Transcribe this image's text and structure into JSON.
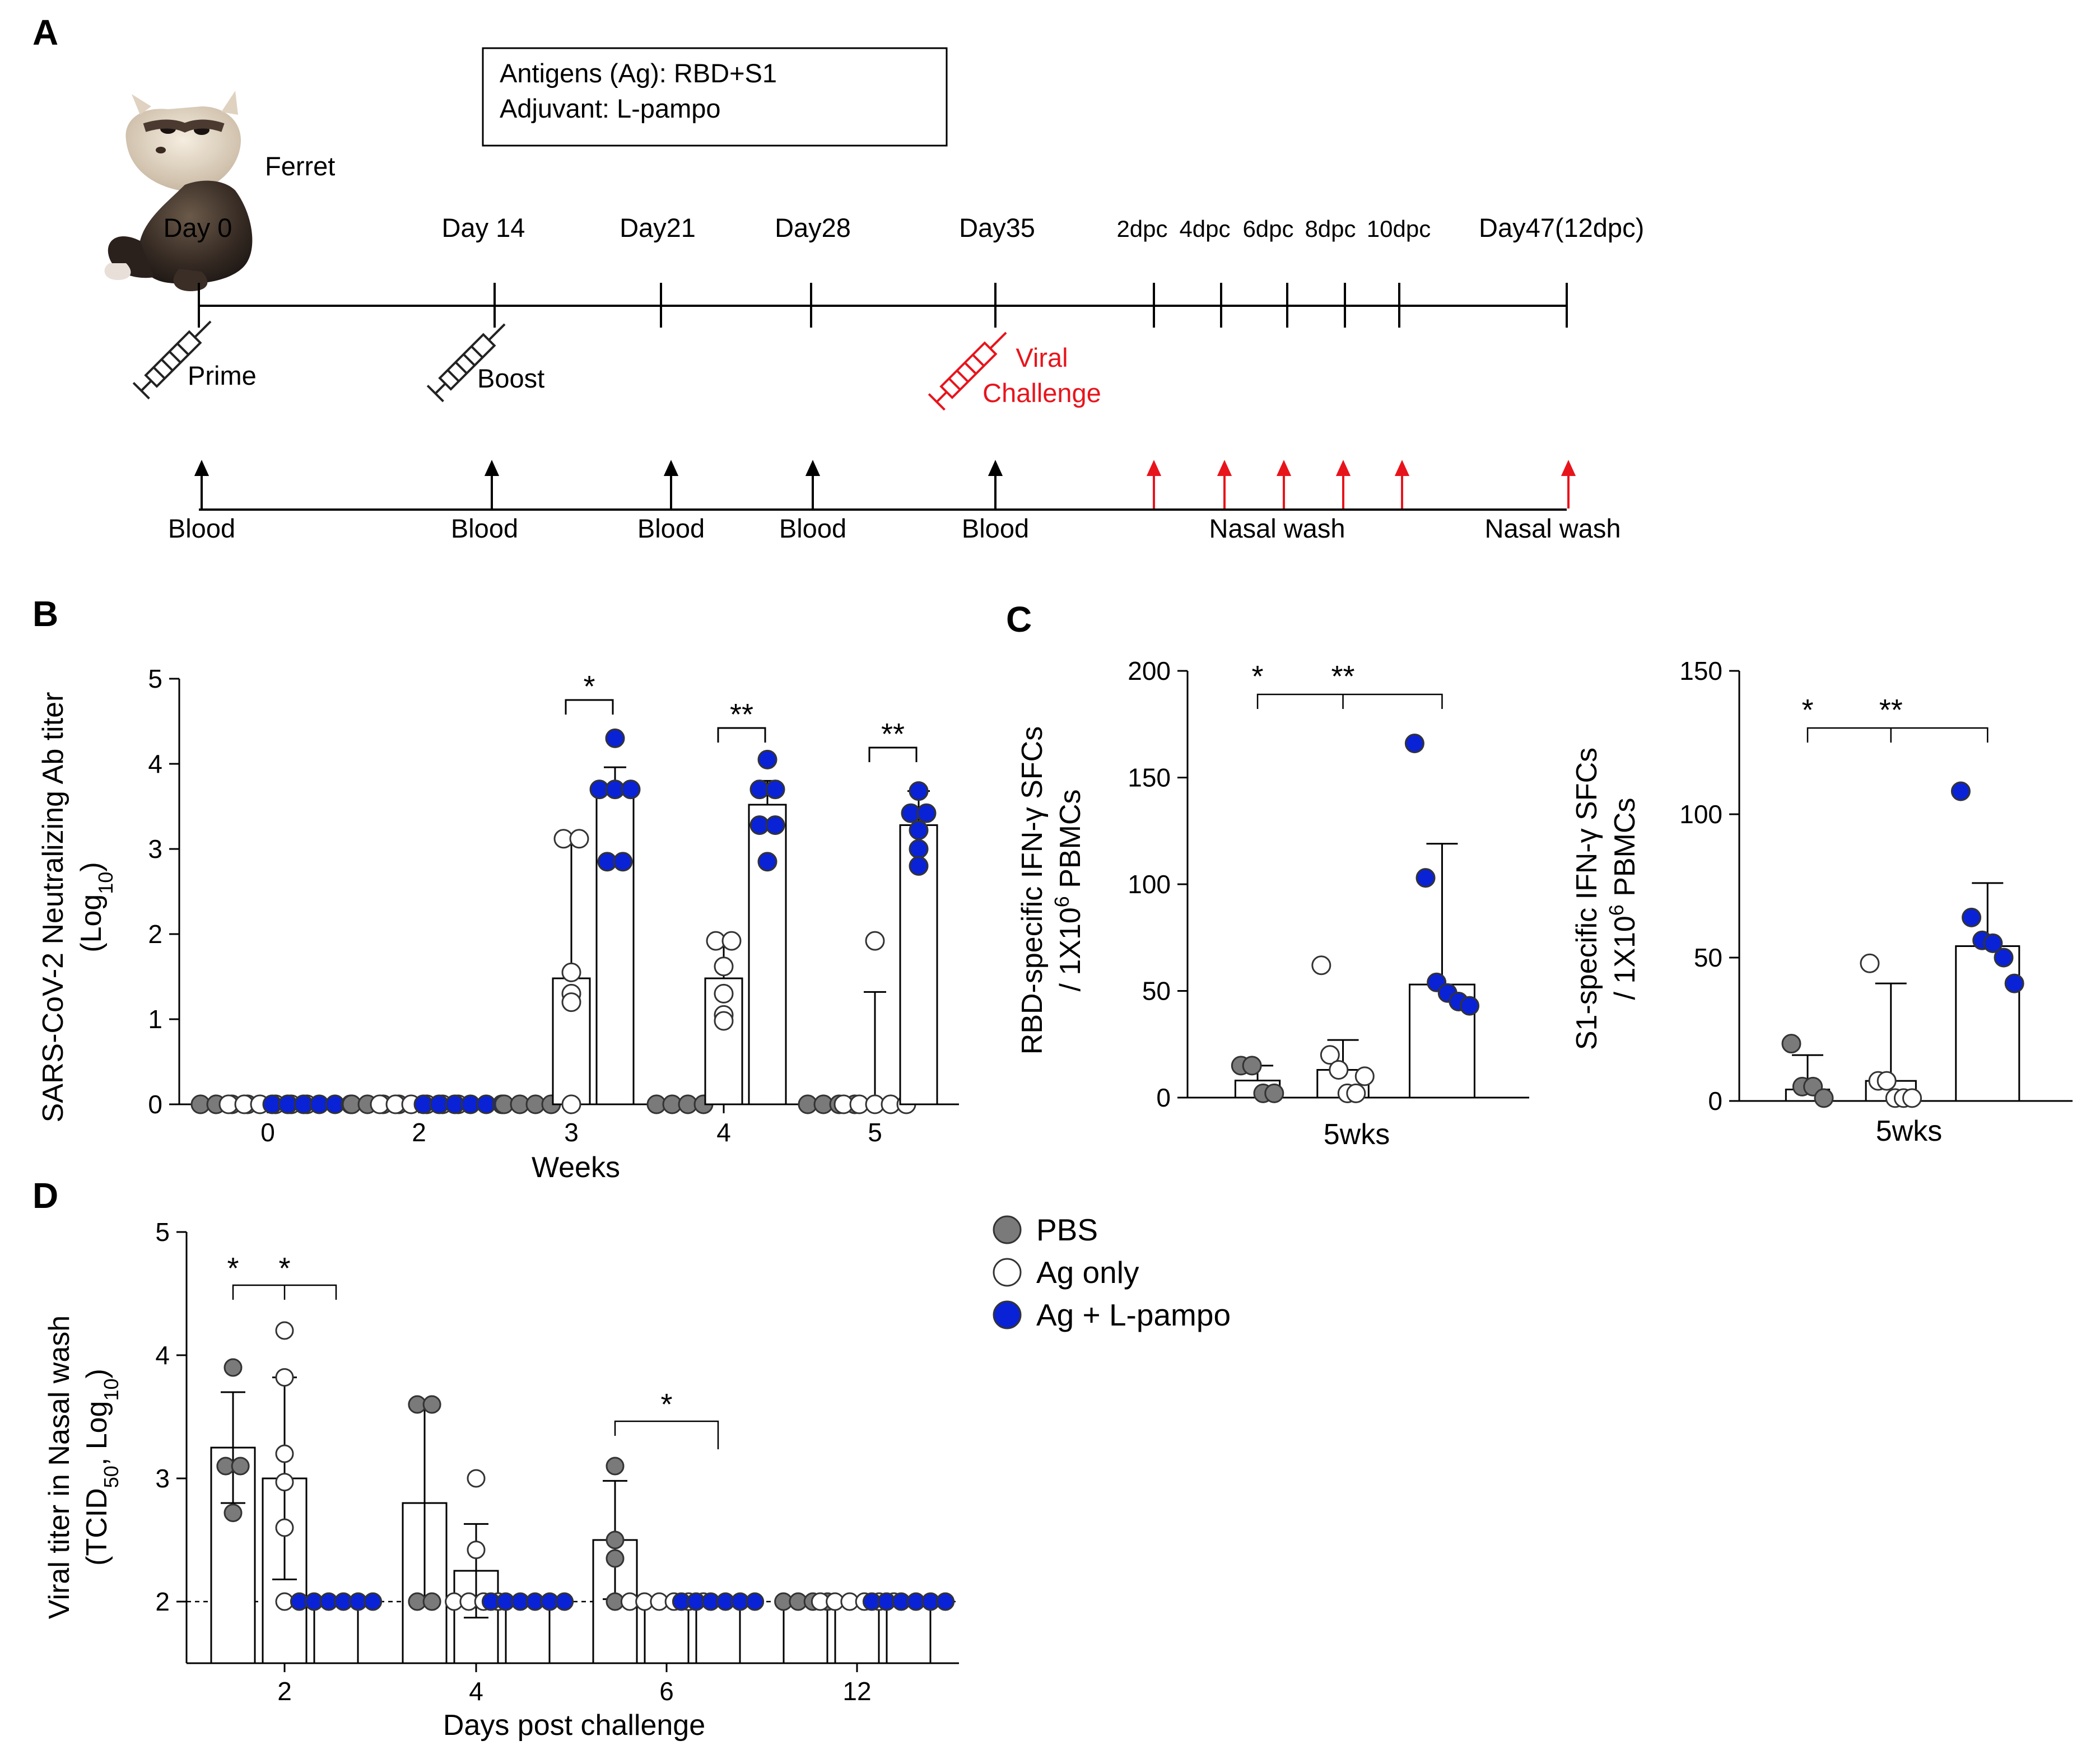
{
  "panels": {
    "A": "A",
    "B": "B",
    "C": "C",
    "D": "D"
  },
  "colors": {
    "pbs": "#7a7a7a",
    "ag": "#ffffff",
    "agl": "#0a22d6",
    "red": "#e8141c"
  },
  "timeline": {
    "animal": "Ferret",
    "antigen_box": {
      "line1": "Antigens (Ag): RBD+S1",
      "line2": "Adjuvant: L-pampo"
    },
    "day_labels": [
      "Day 0",
      "Day 14",
      "Day21",
      "Day28",
      "Day35",
      "2dpc",
      "4dpc",
      "6dpc",
      "8dpc",
      "10dpc",
      "Day47(12dpc)"
    ],
    "events": {
      "prime": "Prime",
      "boost": "Boost",
      "viral": "Viral",
      "challenge": "Challenge"
    },
    "samples": [
      "Blood",
      "Blood",
      "Blood",
      "Blood",
      "Blood",
      "Nasal wash",
      "Nasal wash"
    ]
  },
  "legend": {
    "pbs": "PBS",
    "ag": "Ag only",
    "agl": "Ag + L-pampo"
  },
  "chart_data": [
    {
      "id": "B",
      "type": "bar",
      "title": "",
      "ylabel_line1": "SARS-CoV-2 Neutralizing Ab titer",
      "ylabel_line2": "(Log",
      "ylabel_sub": "10",
      "ylabel_close": ")",
      "xlabel": "Weeks",
      "ylim": [
        0,
        5
      ],
      "yticks": [
        "0",
        "1",
        "2",
        "3",
        "4",
        "5"
      ],
      "categories": [
        "0",
        "2",
        "3",
        "4",
        "5"
      ],
      "series": [
        {
          "name": "PBS",
          "values": [
            0,
            0,
            0,
            0,
            0
          ],
          "err": [
            0,
            0,
            0,
            0,
            0
          ],
          "points": [
            [
              0,
              0,
              0,
              0
            ],
            [
              0,
              0,
              0,
              0
            ],
            [
              0,
              0,
              0,
              0
            ],
            [
              0,
              0,
              0,
              0
            ],
            [
              0,
              0,
              0,
              0
            ]
          ]
        },
        {
          "name": "Ag only",
          "values": [
            0,
            0,
            1.48,
            1.48,
            0
          ],
          "err": [
            0,
            0,
            1.62,
            0.45,
            1.32
          ],
          "points": [
            [
              0,
              0,
              0,
              0,
              0,
              0
            ],
            [
              0,
              0,
              0,
              0,
              0,
              0
            ],
            [
              3.12,
              3.12,
              1.55,
              1.3,
              1.2,
              0
            ],
            [
              1.92,
              1.92,
              1.62,
              1.3,
              1.05,
              0.98
            ],
            [
              1.92,
              0,
              0,
              0,
              0,
              0
            ]
          ]
        },
        {
          "name": "Ag + L-pampo",
          "values": [
            0,
            0,
            3.76,
            3.52,
            3.28
          ],
          "err": [
            0,
            0,
            0.2,
            0.28,
            0.4
          ],
          "points": [
            [
              0,
              0,
              0,
              0,
              0,
              0
            ],
            [
              0,
              0,
              0,
              0,
              0,
              0
            ],
            [
              4.3,
              3.7,
              3.7,
              3.7,
              2.85,
              2.85
            ],
            [
              4.05,
              3.7,
              3.7,
              3.28,
              3.28,
              2.85
            ],
            [
              3.68,
              3.42,
              3.42,
              3.22,
              3.0,
              2.8
            ]
          ]
        }
      ],
      "significance": [
        {
          "category": "3",
          "label": "*"
        },
        {
          "category": "4",
          "label": "**"
        },
        {
          "category": "5",
          "label": "**"
        }
      ]
    },
    {
      "id": "C-RBD",
      "type": "bar",
      "ylabel_line1": "RBD-specific IFN-γ SFCs",
      "ylabel_line2": "/ 1X10",
      "ylabel_sup": "6",
      "ylabel_rest": " PBMCs",
      "xlabel": "5wks",
      "ylim": [
        0,
        200
      ],
      "yticks": [
        "0",
        "50",
        "100",
        "150",
        "200"
      ],
      "series": [
        {
          "name": "PBS",
          "value": 8,
          "err": 7,
          "points": [
            15,
            15,
            2,
            2
          ]
        },
        {
          "name": "Ag only",
          "value": 13,
          "err": 14,
          "points": [
            62,
            20,
            13,
            2,
            2,
            10
          ]
        },
        {
          "name": "Ag + L-pampo",
          "value": 53,
          "err": 66,
          "points": [
            166,
            103,
            54,
            49,
            45,
            43
          ]
        }
      ],
      "significance": [
        "*",
        "**"
      ]
    },
    {
      "id": "C-S1",
      "type": "bar",
      "ylabel_line1": "S1-specific IFN-γ SFCs",
      "ylabel_line2": "/ 1X10",
      "ylabel_sup": "6",
      "ylabel_rest": " PBMCs",
      "xlabel": "5wks",
      "ylim": [
        0,
        150
      ],
      "yticks": [
        "0",
        "50",
        "100",
        "150"
      ],
      "series": [
        {
          "name": "PBS",
          "value": 4,
          "err": 12,
          "points": [
            20,
            5,
            5,
            1
          ]
        },
        {
          "name": "Ag only",
          "value": 7,
          "err": 34,
          "points": [
            48,
            7,
            7,
            1,
            1,
            1
          ]
        },
        {
          "name": "Ag + L-pampo",
          "value": 54,
          "err": 22,
          "points": [
            108,
            64,
            56,
            55,
            50,
            41
          ]
        }
      ],
      "significance": [
        "*",
        "**"
      ]
    },
    {
      "id": "D",
      "type": "bar",
      "ylabel_line1": "Viral titer in Nasal wash",
      "ylabel_line2": "(TCID",
      "ylabel_sub": "50",
      "ylabel_mid": ", Log",
      "ylabel_sub2": "10",
      "ylabel_close": ")",
      "xlabel": "Days post challenge",
      "ylim": [
        1.5,
        5
      ],
      "baseline": 2,
      "yticks": [
        "2",
        "3",
        "4",
        "5"
      ],
      "categories": [
        "2",
        "4",
        "6",
        "12"
      ],
      "series": [
        {
          "name": "PBS",
          "values": [
            3.25,
            2.8,
            2.5,
            2.0
          ],
          "err": [
            0.45,
            0.82,
            0.48,
            0
          ],
          "points": [
            [
              3.9,
              3.1,
              3.1,
              2.72
            ],
            [
              3.6,
              3.6,
              2.0,
              2.0
            ],
            [
              3.1,
              2.5,
              2.35,
              2.0
            ],
            [
              2.0,
              2.0,
              2.0,
              2.0
            ]
          ]
        },
        {
          "name": "Ag only",
          "values": [
            3.0,
            2.25,
            2.0,
            2.0
          ],
          "err": [
            0.82,
            0.38,
            0,
            0
          ],
          "points": [
            [
              4.2,
              3.82,
              3.2,
              2.97,
              2.6,
              2.0
            ],
            [
              3.0,
              2.42,
              2.0,
              2.0,
              2.0,
              2.0
            ],
            [
              2.0,
              2.0,
              2.0,
              2.0,
              2.0,
              2.0
            ],
            [
              2.0,
              2.0,
              2.0,
              2.0,
              2.0,
              2.0
            ]
          ]
        },
        {
          "name": "Ag + L-pampo",
          "values": [
            2.0,
            2.0,
            2.0,
            2.0
          ],
          "err": [
            0,
            0,
            0,
            0
          ],
          "points": [
            [
              2,
              2,
              2,
              2,
              2,
              2
            ],
            [
              2,
              2,
              2,
              2,
              2,
              2
            ],
            [
              2,
              2,
              2,
              2,
              2,
              2
            ],
            [
              2,
              2,
              2,
              2,
              2,
              2
            ]
          ]
        }
      ],
      "significance": [
        {
          "category": "2",
          "labels": [
            "*",
            "*"
          ]
        },
        {
          "category": "6",
          "labels": [
            "*"
          ]
        }
      ]
    }
  ]
}
